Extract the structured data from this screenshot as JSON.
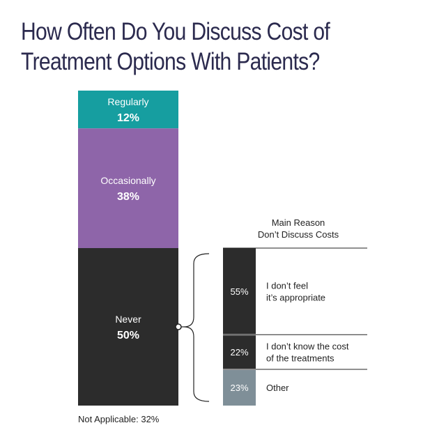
{
  "title_lines": [
    "How Often Do You Discuss Cost of",
    "Treatment Options With Patients?"
  ],
  "chart_data": [
    {
      "type": "bar",
      "layout": "stacked-single-column",
      "categories": [
        "Regularly",
        "Occasionally",
        "Never"
      ],
      "values": [
        12,
        38,
        50
      ],
      "value_labels": [
        "12%",
        "38%",
        "50%"
      ],
      "colors": [
        "#169ea0",
        "#8e65a9",
        "#2c2c2c"
      ],
      "footnote": "Not Applicable: 32%"
    },
    {
      "type": "bar",
      "layout": "stacked-single-column",
      "title_lines": [
        "Main Reason",
        "Don’t Discuss Costs"
      ],
      "categories": [
        [
          "I don’t feel",
          "it’s appropriate"
        ],
        [
          "I don’t know the cost",
          "of the treatments"
        ],
        [
          "Other"
        ]
      ],
      "values": [
        55,
        22,
        23
      ],
      "value_labels": [
        "55%",
        "22%",
        "23%"
      ],
      "colors": [
        "#2c2c2c",
        "#2c2c2c",
        "#7f8f98"
      ],
      "breaks_down": "Never"
    }
  ]
}
